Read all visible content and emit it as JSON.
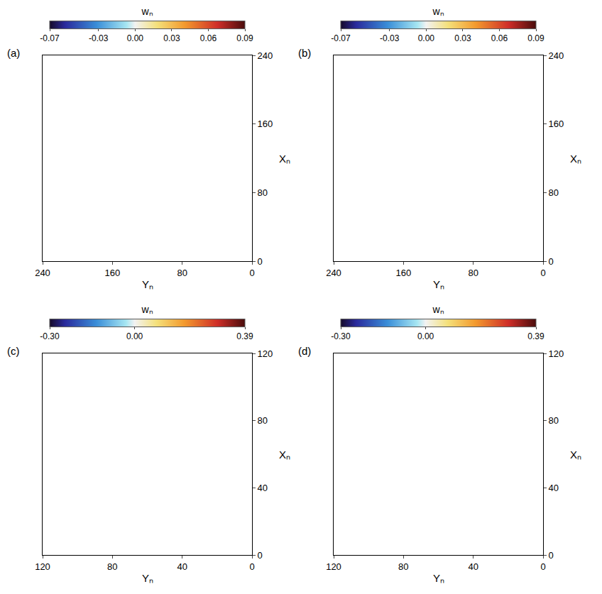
{
  "chart_data": [
    {
      "type": "isosurface",
      "title": "(a)",
      "x_label": "Yₙ",
      "y_label": "Xₙ",
      "xlim": [
        240,
        0
      ],
      "xticks": [
        0,
        80,
        160,
        240
      ],
      "ylim": [
        0,
        240
      ],
      "yticks": [
        0,
        80,
        160,
        240
      ],
      "colorbar": {
        "title": "wₙ",
        "range": [
          -0.07,
          0.09
        ],
        "ticks": [
          -0.07,
          -0.03,
          {
            "value": 0,
            "label": "0.00"
          },
          0.03,
          0.06,
          0.09
        ]
      }
    },
    {
      "type": "isosurface",
      "title": "(b)",
      "x_label": "Yₙ",
      "y_label": "Xₙ",
      "xlim": [
        240,
        0
      ],
      "xticks": [
        0,
        80,
        160,
        240
      ],
      "ylim": [
        0,
        240
      ],
      "yticks": [
        0,
        80,
        160,
        240
      ],
      "colorbar": {
        "title": "wₙ",
        "range": [
          -0.07,
          0.09
        ],
        "ticks": [
          -0.07,
          -0.03,
          {
            "value": 0,
            "label": "0.00"
          },
          0.03,
          0.06,
          0.09
        ]
      }
    },
    {
      "type": "isosurface",
      "title": "(c)",
      "x_label": "Yₙ",
      "y_label": "Xₙ",
      "xlim": [
        120,
        0
      ],
      "xticks": [
        0,
        40,
        80,
        120
      ],
      "ylim": [
        0,
        120
      ],
      "yticks": [
        0,
        40,
        80,
        120
      ],
      "colorbar": {
        "title": "wₙ",
        "range": [
          -0.3,
          0.39
        ],
        "ticks": [
          {
            "value": -0.3,
            "label": "-0.30"
          },
          {
            "value": 0,
            "label": "0.00"
          },
          0.39
        ]
      }
    },
    {
      "type": "isosurface",
      "title": "(d)",
      "x_label": "Yₙ",
      "y_label": "Xₙ",
      "xlim": [
        120,
        0
      ],
      "xticks": [
        0,
        40,
        80,
        120
      ],
      "ylim": [
        0,
        120
      ],
      "yticks": [
        0,
        40,
        80,
        120
      ],
      "colorbar": {
        "title": "wₙ",
        "range": [
          -0.3,
          0.39
        ],
        "ticks": [
          {
            "value": -0.3,
            "label": "-0.30"
          },
          {
            "value": 0,
            "label": "0.00"
          },
          0.39
        ]
      }
    }
  ]
}
